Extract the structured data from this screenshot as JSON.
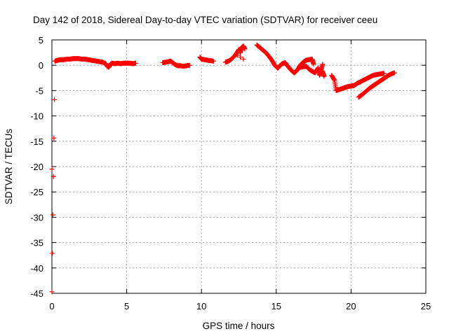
{
  "chart_data": {
    "type": "scatter",
    "title": "Day 142 of 2018, Sidereal Day-to-day VTEC variation (SDTVAR) for receiver ceeu",
    "xlabel": "GPS time / hours",
    "ylabel": "SDTVAR / TECUs",
    "xlim": [
      0,
      25
    ],
    "ylim": [
      -45,
      5
    ],
    "xticks": [
      0,
      5,
      10,
      15,
      20,
      25
    ],
    "yticks": [
      5,
      0,
      -5,
      -10,
      -15,
      -20,
      -25,
      -30,
      -35,
      -40,
      -45
    ],
    "grid": true,
    "marker": "+",
    "color": "#ff0000",
    "series": [
      {
        "name": "SDTVAR",
        "points": [
          [
            0.0,
            -20.5
          ],
          [
            0.0,
            -44.7
          ],
          [
            0.2,
            0.8
          ],
          [
            0.4,
            1.0
          ],
          [
            0.6,
            1.1
          ],
          [
            0.8,
            1.1
          ],
          [
            1.0,
            1.2
          ],
          [
            1.2,
            1.2
          ],
          [
            1.4,
            1.3
          ],
          [
            1.6,
            1.3
          ],
          [
            1.8,
            1.3
          ],
          [
            2.0,
            1.2
          ],
          [
            2.2,
            1.2
          ],
          [
            2.4,
            1.1
          ],
          [
            2.6,
            1.0
          ],
          [
            2.8,
            0.9
          ],
          [
            3.0,
            0.8
          ],
          [
            3.2,
            0.7
          ],
          [
            3.4,
            0.6
          ],
          [
            3.6,
            0.3
          ],
          [
            3.7,
            -0.2
          ],
          [
            3.8,
            -0.4
          ],
          [
            3.9,
            0.1
          ],
          [
            4.0,
            0.4
          ],
          [
            4.2,
            0.3
          ],
          [
            4.4,
            0.4
          ],
          [
            4.6,
            0.3
          ],
          [
            4.8,
            0.4
          ],
          [
            5.0,
            0.4
          ],
          [
            5.2,
            0.4
          ],
          [
            5.4,
            0.3
          ],
          [
            5.6,
            0.4
          ],
          [
            7.4,
            0.5
          ],
          [
            7.6,
            0.6
          ],
          [
            7.8,
            0.7
          ],
          [
            7.9,
            0.8
          ],
          [
            8.0,
            0.7
          ],
          [
            8.2,
            0.2
          ],
          [
            8.4,
            -0.1
          ],
          [
            8.6,
            -0.1
          ],
          [
            8.8,
            -0.2
          ],
          [
            9.0,
            -0.1
          ],
          [
            9.2,
            0.0
          ],
          [
            9.9,
            1.6
          ],
          [
            10.0,
            1.2
          ],
          [
            10.2,
            1.1
          ],
          [
            10.4,
            1.0
          ],
          [
            10.6,
            0.9
          ],
          [
            10.8,
            0.8
          ],
          [
            11.6,
            0.6
          ],
          [
            11.8,
            0.8
          ],
          [
            12.0,
            1.2
          ],
          [
            12.2,
            1.8
          ],
          [
            12.4,
            2.6
          ],
          [
            12.5,
            3.1
          ],
          [
            12.6,
            2.5
          ],
          [
            12.7,
            3.5
          ],
          [
            12.8,
            3.8
          ],
          [
            12.9,
            3.2
          ],
          [
            12.8,
            1.2
          ],
          [
            12.6,
            1.6
          ],
          [
            12.4,
            2.0
          ],
          [
            13.7,
            4.0
          ],
          [
            13.9,
            3.5
          ],
          [
            14.1,
            3.0
          ],
          [
            14.3,
            2.5
          ],
          [
            14.5,
            1.8
          ],
          [
            14.7,
            1.0
          ],
          [
            14.9,
            0.0
          ],
          [
            15.1,
            -0.6
          ],
          [
            15.2,
            -0.2
          ],
          [
            15.4,
            0.3
          ],
          [
            15.6,
            0.5
          ],
          [
            15.8,
            -0.3
          ],
          [
            16.0,
            -1.0
          ],
          [
            16.2,
            -1.5
          ],
          [
            16.4,
            -1.0
          ],
          [
            16.6,
            0.0
          ],
          [
            16.8,
            0.6
          ],
          [
            17.0,
            1.0
          ],
          [
            17.2,
            1.1
          ],
          [
            17.4,
            1.2
          ],
          [
            17.5,
            0.2
          ],
          [
            16.6,
            -0.4
          ],
          [
            16.8,
            -0.3
          ],
          [
            17.0,
            -0.2
          ],
          [
            17.2,
            -0.8
          ],
          [
            17.4,
            -1.2
          ],
          [
            17.6,
            -1.5
          ],
          [
            17.8,
            -0.5
          ],
          [
            17.9,
            -2.0
          ],
          [
            18.0,
            -1.0
          ],
          [
            18.1,
            0.2
          ],
          [
            18.1,
            -1.2
          ],
          [
            18.2,
            -2.2
          ],
          [
            18.7,
            -2.0
          ],
          [
            18.9,
            -3.0
          ],
          [
            19.0,
            -5.0
          ],
          [
            19.2,
            -4.8
          ],
          [
            19.4,
            -4.6
          ],
          [
            19.6,
            -4.4
          ],
          [
            19.8,
            -4.2
          ],
          [
            20.0,
            -4.1
          ],
          [
            20.2,
            -4.0
          ],
          [
            20.4,
            -3.6
          ],
          [
            20.6,
            -3.3
          ],
          [
            20.8,
            -3.0
          ],
          [
            21.0,
            -2.7
          ],
          [
            21.2,
            -2.4
          ],
          [
            21.4,
            -2.1
          ],
          [
            21.6,
            -1.9
          ],
          [
            21.8,
            -1.8
          ],
          [
            22.0,
            -1.7
          ],
          [
            22.2,
            -1.6
          ],
          [
            20.5,
            -6.3
          ],
          [
            20.7,
            -5.9
          ],
          [
            20.9,
            -5.4
          ],
          [
            21.1,
            -4.9
          ],
          [
            21.3,
            -4.4
          ],
          [
            21.5,
            -4.0
          ],
          [
            21.7,
            -3.6
          ],
          [
            21.9,
            -3.2
          ],
          [
            22.1,
            -2.8
          ],
          [
            22.3,
            -2.4
          ],
          [
            22.5,
            -2.0
          ],
          [
            22.7,
            -1.7
          ],
          [
            22.9,
            -1.5
          ]
        ]
      }
    ]
  }
}
